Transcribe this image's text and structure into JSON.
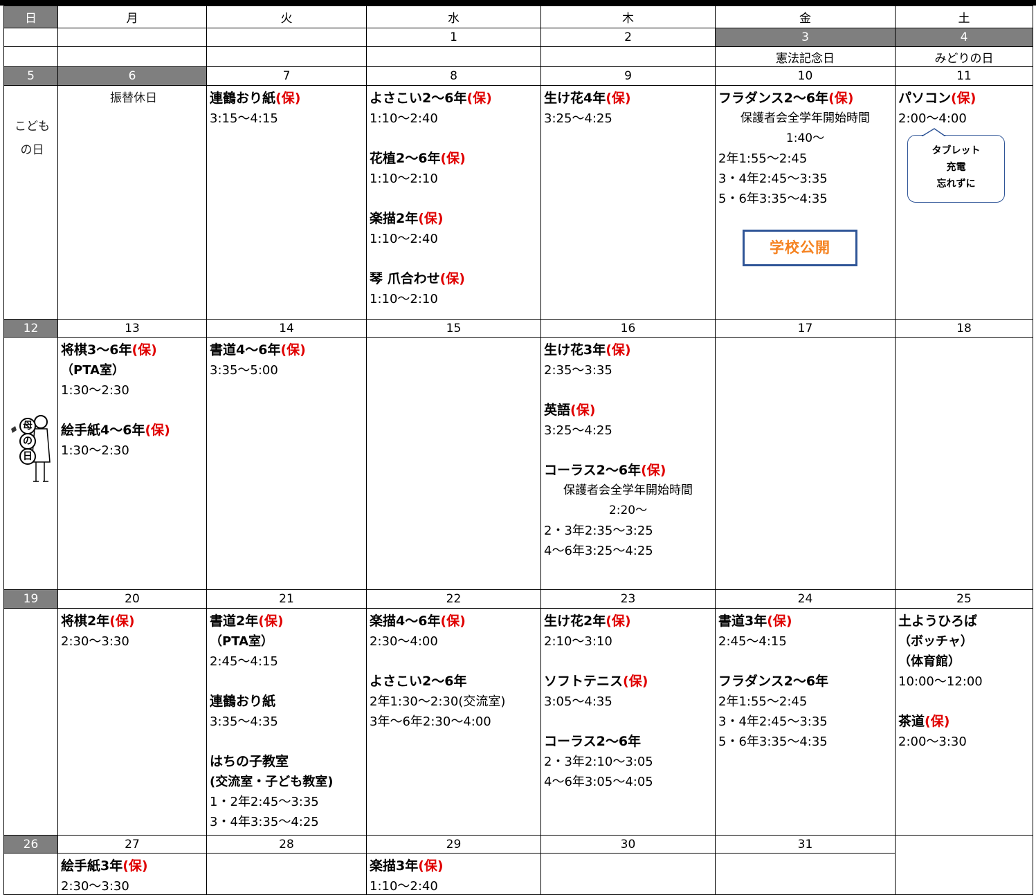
{
  "weekdays": [
    "日",
    "月",
    "火",
    "水",
    "木",
    "金",
    "土"
  ],
  "first_week": {
    "dates": [
      "1",
      "2",
      "3",
      "4"
    ],
    "holidays": [
      "憲法記念日",
      "みどりの日"
    ]
  },
  "weeks": [
    {
      "days": [
        {
          "date": "5",
          "holiday": [
            "こども",
            "の日"
          ]
        },
        {
          "date": "6",
          "holiday": [
            "振替休日"
          ]
        },
        {
          "date": "7",
          "events": [
            {
              "title": "連鶴おり紙",
              "tag": "(保)",
              "lines": [
                "3:15〜4:15"
              ]
            }
          ]
        },
        {
          "date": "8",
          "events": [
            {
              "title": "よさこい2〜6年",
              "tag": "(保)",
              "lines": [
                "1:10〜2:40"
              ]
            },
            {
              "title": "花植2〜6年",
              "tag": "(保)",
              "lines": [
                "1:10〜2:10"
              ]
            },
            {
              "title": "楽描2年",
              "tag": "(保)",
              "lines": [
                "1:10〜2:40"
              ]
            },
            {
              "title": "琴 爪合わせ",
              "tag": "(保)",
              "lines": [
                "1:10〜2:10"
              ]
            }
          ]
        },
        {
          "date": "9",
          "events": [
            {
              "title": "生け花4年",
              "tag": "(保)",
              "lines": [
                "3:25〜4:25"
              ]
            }
          ]
        },
        {
          "date": "10",
          "events": [
            {
              "title": "フラダンス2〜6年",
              "tag": "(保)",
              "centered_lines": [
                "保護者会全学年開始時間",
                "1:40〜"
              ],
              "lines": [
                "2年1:55〜2:45",
                "3・4年2:45〜3:35",
                "5・6年3:35〜4:35"
              ]
            }
          ],
          "badge": "学校公開"
        },
        {
          "date": "11",
          "events": [
            {
              "title": "パソコン",
              "tag": "(保)",
              "lines": [
                "2:00〜4:00"
              ]
            }
          ],
          "callout": [
            "タブレット",
            "充電",
            "忘れずに"
          ]
        }
      ]
    },
    {
      "days": [
        {
          "date": "12",
          "image_text": [
            "母",
            "の",
            "日"
          ]
        },
        {
          "date": "13",
          "events": [
            {
              "title": "将棋3〜6年",
              "tag": "(保)",
              "subtitles": [
                "（PTA室）"
              ],
              "lines": [
                "1:30〜2:30"
              ]
            },
            {
              "title": "絵手紙4〜6年",
              "tag": "(保)",
              "lines": [
                "1:30〜2:30"
              ]
            }
          ]
        },
        {
          "date": "14",
          "events": [
            {
              "title": "書道4〜6年",
              "tag": "(保)",
              "lines": [
                "3:35〜5:00"
              ]
            }
          ]
        },
        {
          "date": "15"
        },
        {
          "date": "16",
          "events": [
            {
              "title": "生け花3年",
              "tag": "(保)",
              "lines": [
                "2:35〜3:35"
              ]
            },
            {
              "title": "英語",
              "tag": "(保)",
              "lines": [
                "3:25〜4:25"
              ]
            },
            {
              "title": "コーラス2〜6年",
              "tag": "(保)",
              "centered_lines": [
                "保護者会全学年開始時間",
                "2:20〜"
              ],
              "lines": [
                "2・3年2:35〜3:25",
                "4〜6年3:25〜4:25"
              ]
            }
          ]
        },
        {
          "date": "17"
        },
        {
          "date": "18"
        }
      ]
    },
    {
      "days": [
        {
          "date": "19"
        },
        {
          "date": "20",
          "events": [
            {
              "title": "将棋2年",
              "tag": "(保)",
              "lines": [
                "2:30〜3:30"
              ]
            }
          ]
        },
        {
          "date": "21",
          "events": [
            {
              "title": "書道2年",
              "tag": "(保)",
              "subtitles": [
                "（PTA室）"
              ],
              "lines": [
                "2:45〜4:15"
              ]
            },
            {
              "title": "連鶴おり紙",
              "lines": [
                "3:35〜4:35"
              ]
            },
            {
              "title": "はちの子教室",
              "subtitles": [
                "(交流室・子ども教室)"
              ],
              "lines": [
                "1・2年2:45〜3:35",
                "3・4年3:35〜4:25"
              ]
            }
          ]
        },
        {
          "date": "22",
          "events": [
            {
              "title": "楽描4〜6年",
              "tag": "(保)",
              "lines": [
                "2:30〜4:00"
              ]
            },
            {
              "title": "よさこい2〜6年",
              "lines": [
                "2年1:30〜2:30(交流室)",
                "3年〜6年2:30〜4:00"
              ]
            }
          ]
        },
        {
          "date": "23",
          "events": [
            {
              "title": "生け花2年",
              "tag": "(保)",
              "lines": [
                "2:10〜3:10"
              ]
            },
            {
              "title": "ソフトテニス",
              "tag": "(保)",
              "lines": [
                "3:05〜4:35"
              ]
            },
            {
              "title": "コーラス2〜6年",
              "lines": [
                "2・3年2:10〜3:05",
                "4〜6年3:05〜4:05"
              ]
            }
          ]
        },
        {
          "date": "24",
          "events": [
            {
              "title": "書道3年",
              "tag": "(保)",
              "lines": [
                "2:45〜4:15"
              ]
            },
            {
              "title": "フラダンス2〜6年",
              "lines": [
                "2年1:55〜2:45",
                "3・4年2:45〜3:35",
                "5・6年3:35〜4:35"
              ]
            }
          ]
        },
        {
          "date": "25",
          "events": [
            {
              "title": "土ようひろば",
              "subtitles": [
                "（ボッチャ）",
                "（体育館）"
              ],
              "lines": [
                "10:00〜12:00"
              ]
            },
            {
              "title": "茶道",
              "tag": "(保)",
              "lines": [
                "2:00〜3:30"
              ]
            }
          ]
        }
      ]
    },
    {
      "days": [
        {
          "date": "26"
        },
        {
          "date": "27",
          "events": [
            {
              "title": "絵手紙3年",
              "tag": "(保)",
              "lines": [
                "2:30〜3:30"
              ]
            }
          ]
        },
        {
          "date": "28"
        },
        {
          "date": "29",
          "events": [
            {
              "title": "楽描3年",
              "tag": "(保)",
              "lines": [
                "1:10〜2:40"
              ]
            }
          ]
        },
        {
          "date": "30"
        },
        {
          "date": "31"
        }
      ]
    }
  ]
}
